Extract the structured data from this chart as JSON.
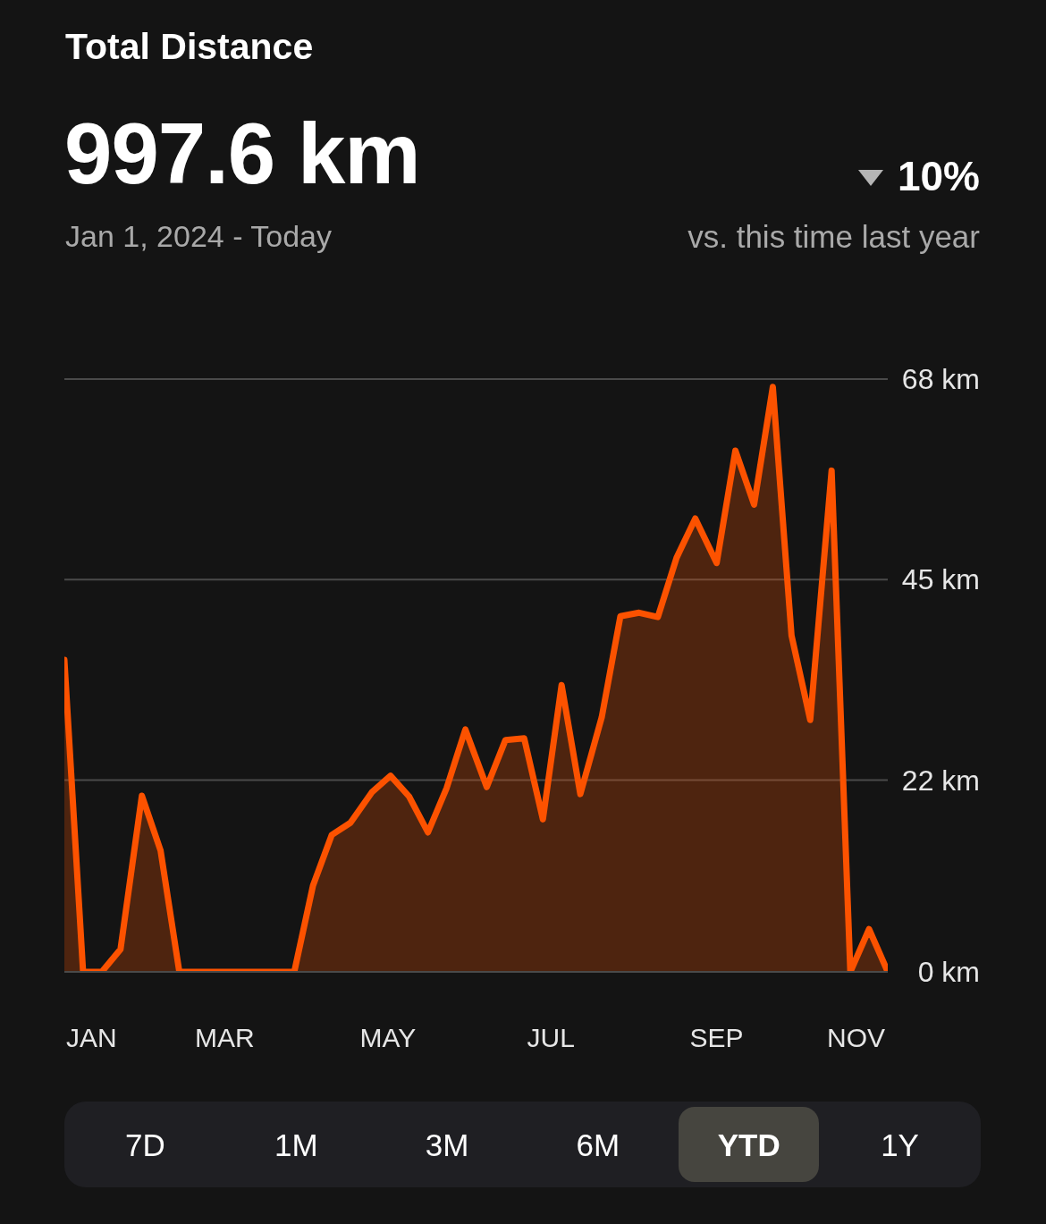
{
  "chart_data": {
    "type": "area",
    "title": "Total Distance",
    "subtitle": "Jan 1, 2024 - Today",
    "annotations": [
      "997.6 km",
      "10%",
      "vs. this time last year",
      "7D",
      "1M",
      "3M",
      "6M",
      "YTD",
      "1Y"
    ],
    "x": [
      "2024-01-01",
      "2024-01-08",
      "2024-01-15",
      "2024-01-22",
      "2024-01-30",
      "2024-02-06",
      "2024-02-13",
      "2024-02-20",
      "2024-02-27",
      "2024-03-05",
      "2024-03-13",
      "2024-03-20",
      "2024-03-27",
      "2024-04-03",
      "2024-04-10",
      "2024-04-17",
      "2024-04-25",
      "2024-05-02",
      "2024-05-09",
      "2024-05-16",
      "2024-05-23",
      "2024-05-30",
      "2024-06-07",
      "2024-06-14",
      "2024-06-21",
      "2024-06-28",
      "2024-07-05",
      "2024-07-12",
      "2024-07-20",
      "2024-07-27",
      "2024-08-03",
      "2024-08-10",
      "2024-08-17",
      "2024-08-24",
      "2024-09-01",
      "2024-09-08",
      "2024-09-15",
      "2024-09-22",
      "2024-09-29",
      "2024-10-06",
      "2024-10-14",
      "2024-10-21",
      "2024-10-28",
      "2024-11-04"
    ],
    "values": [
      35.8,
      0,
      0,
      2.6,
      20.2,
      13.9,
      0,
      0,
      0,
      0,
      0,
      0,
      0,
      9.9,
      15.7,
      17.1,
      20.6,
      22.5,
      20.1,
      16.0,
      21.1,
      27.8,
      21.2,
      26.6,
      26.8,
      17.5,
      32.9,
      20.4,
      29.2,
      40.8,
      41.2,
      40.7,
      47.5,
      52.0,
      46.9,
      59.8,
      53.6,
      67.1,
      38.6,
      28.9,
      57.5,
      0,
      4.9,
      0
    ],
    "color": "#fc5200",
    "xlim": [
      "2024-01-01",
      "2024-11-04"
    ],
    "xticks": [
      {
        "value": "2024-01-01",
        "label": "JAN"
      },
      {
        "value": "2024-03-01",
        "label": "MAR"
      },
      {
        "value": "2024-05-01",
        "label": "MAY"
      },
      {
        "value": "2024-07-01",
        "label": "JUL"
      },
      {
        "value": "2024-09-01",
        "label": "SEP"
      },
      {
        "value": "2024-11-01",
        "label": "NOV"
      }
    ],
    "ylim": [
      0,
      68
    ],
    "yticks": [
      {
        "value": 0,
        "label": "0 km"
      },
      {
        "value": 22,
        "label": "22 km"
      },
      {
        "value": 45,
        "label": "45 km"
      },
      {
        "value": 68,
        "label": "68 km"
      }
    ],
    "grid": "y"
  }
}
